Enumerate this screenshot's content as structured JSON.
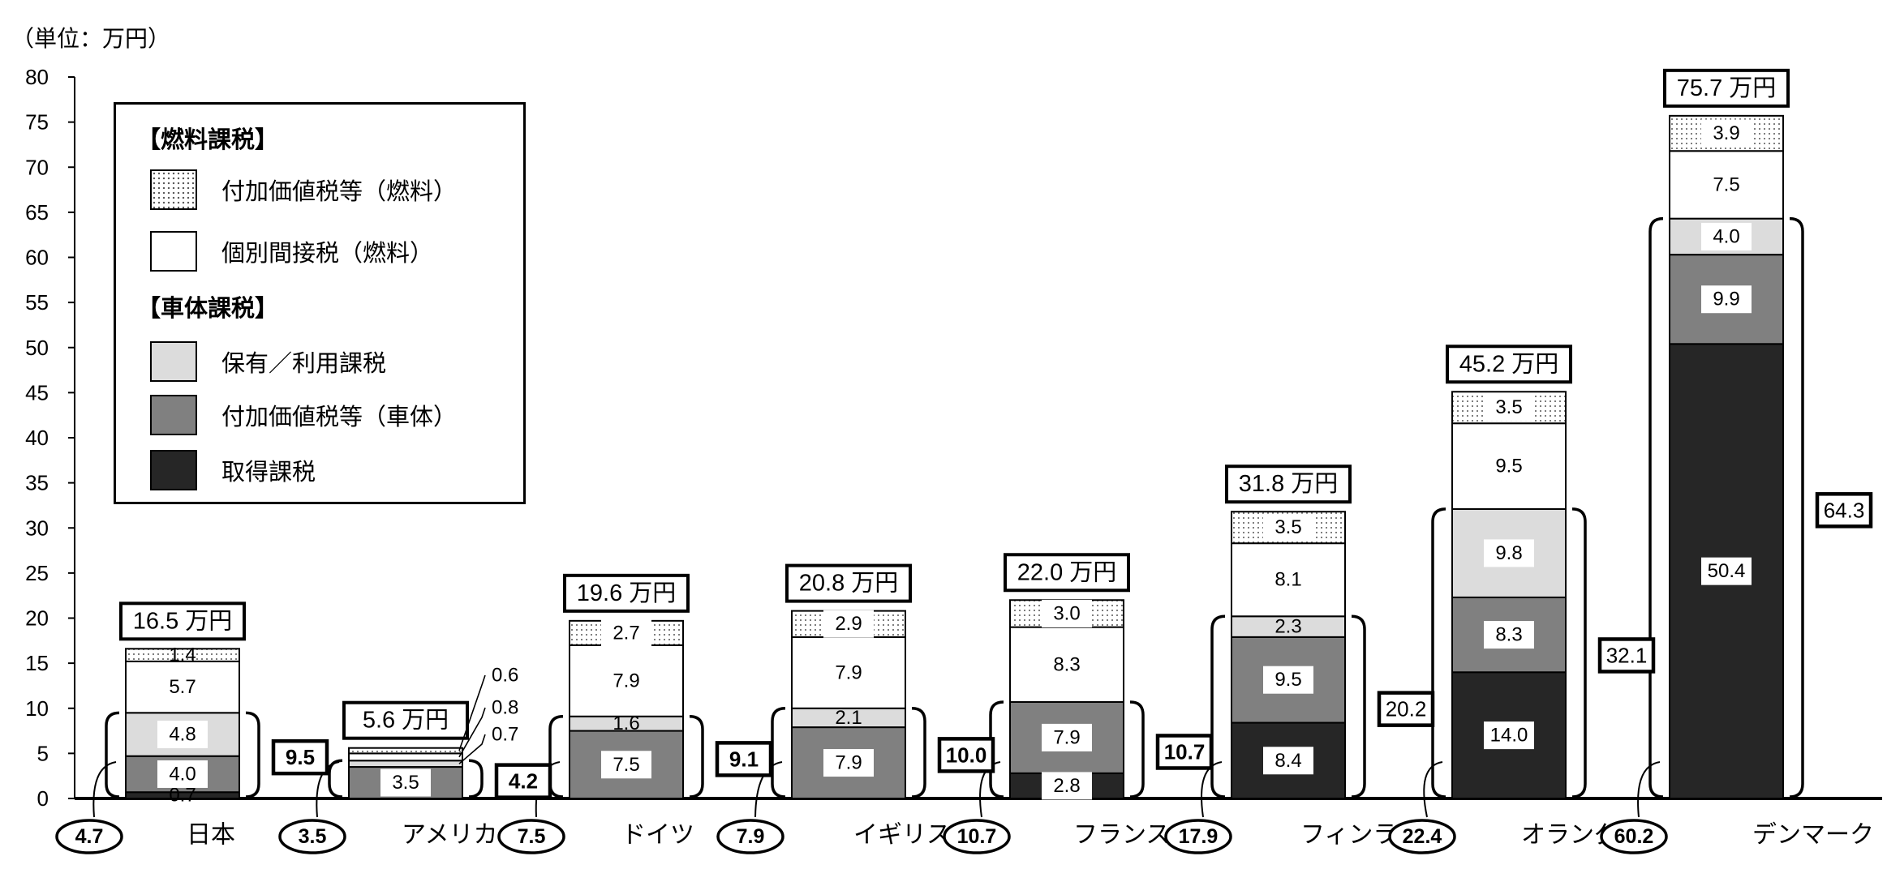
{
  "unit_label": "（単位：万円）",
  "legend": {
    "fuel_group": "【燃料課税】",
    "body_group": "【車体課税】",
    "items": [
      {
        "label": "付加価値税等（燃料）",
        "fill": "dots"
      },
      {
        "label": "個別間接税（燃料）",
        "fill": "#ffffff"
      },
      {
        "label": "保有／利用課税",
        "fill": "#dcdcdc"
      },
      {
        "label": "付加価値税等（車体）",
        "fill": "#808080"
      },
      {
        "label": "取得課税",
        "fill": "#262626"
      }
    ]
  },
  "chart_data": {
    "type": "bar",
    "stacked": true,
    "ylim": [
      0,
      80
    ],
    "yticks": [
      "0",
      "5",
      "10",
      "15",
      "20",
      "25",
      "30",
      "35",
      "40",
      "45",
      "50",
      "55",
      "60",
      "65",
      "70",
      "75",
      "80"
    ],
    "categories": [
      "日本",
      "アメリカ",
      "ドイツ",
      "イギリス",
      "フランス",
      "フィンランド",
      "オランダ",
      "デンマーク"
    ],
    "series": [
      {
        "name": "取得課税",
        "color": "#262626",
        "values": [
          0.7,
          0,
          0,
          0,
          2.8,
          8.4,
          14.0,
          50.4
        ],
        "labels": [
          "0.7",
          "",
          "",
          "",
          "2.8",
          "8.4",
          "14.0",
          "50.4"
        ]
      },
      {
        "name": "付加価値税等（車体）",
        "color": "#808080",
        "values": [
          4.0,
          3.5,
          7.5,
          7.9,
          7.9,
          9.5,
          8.3,
          9.9
        ],
        "labels": [
          "4.0",
          "3.5",
          "7.5",
          "7.9",
          "7.9",
          "9.5",
          "8.3",
          "9.9"
        ]
      },
      {
        "name": "保有／利用課税",
        "color": "#dcdcdc",
        "values": [
          4.8,
          0.7,
          1.6,
          2.1,
          0,
          2.3,
          9.8,
          4.0
        ],
        "labels": [
          "4.8",
          "0.7",
          "1.6",
          "2.1",
          "",
          "2.3",
          "9.8",
          "4.0"
        ]
      },
      {
        "name": "個別間接税（燃料）",
        "color": "#ffffff",
        "values": [
          5.7,
          0.8,
          7.9,
          7.9,
          8.3,
          8.1,
          9.5,
          7.5
        ],
        "labels": [
          "5.7",
          "0.8",
          "7.9",
          "7.9",
          "8.3",
          "8.1",
          "9.5",
          "7.5"
        ]
      },
      {
        "name": "付加価値税等（燃料）",
        "color": "dots",
        "values": [
          1.4,
          0.6,
          2.7,
          2.9,
          3.0,
          3.5,
          3.5,
          3.9
        ],
        "labels": [
          "1.4",
          "0.6",
          "2.7",
          "2.9",
          "3.0",
          "3.5",
          "3.5",
          "3.9"
        ]
      }
    ],
    "totals": [
      "16.5 万円",
      "5.6 万円",
      "19.6 万円",
      "20.8 万円",
      "22.0 万円",
      "31.8 万円",
      "45.2 万円",
      "75.7 万円"
    ],
    "body_tax_totals": [
      "9.5",
      "4.2",
      "9.1",
      "10.0",
      "10.7",
      "20.2",
      "32.1",
      "64.3"
    ],
    "acquisition_vat_totals": [
      "4.7",
      "3.5",
      "7.5",
      "7.9",
      "10.7",
      "17.9",
      "22.4",
      "60.2"
    ]
  }
}
